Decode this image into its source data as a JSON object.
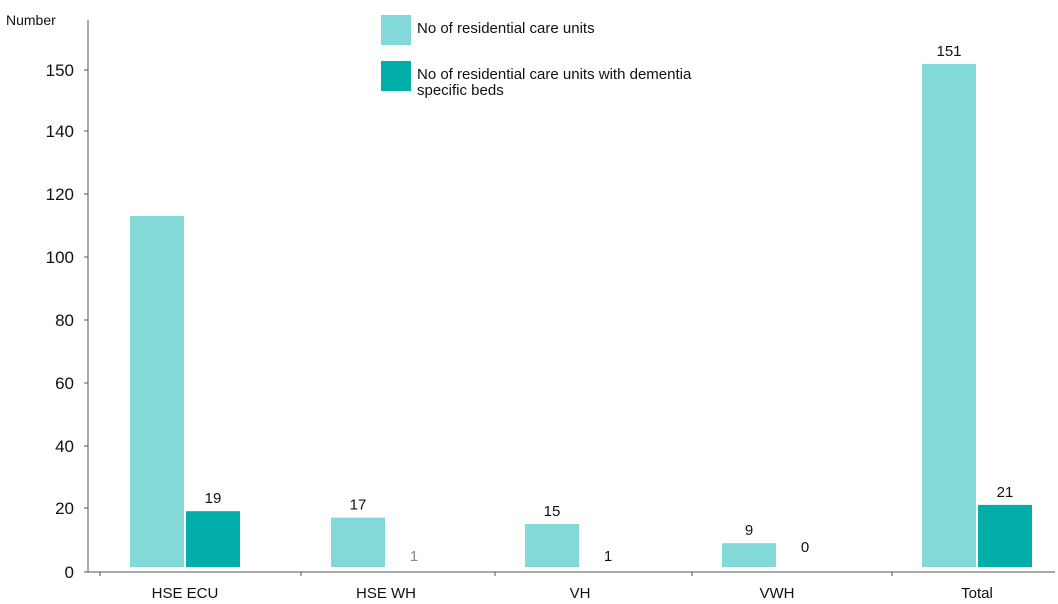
{
  "chart_data": {
    "type": "bar",
    "ylabel": "Number",
    "xlabel": "",
    "ylim": [
      0,
      160
    ],
    "yticks": [
      0,
      20,
      40,
      60,
      80,
      100,
      120,
      140,
      150
    ],
    "categories": [
      "HSE ECU",
      "HSE WH",
      "VH",
      "VWH",
      "Total"
    ],
    "series": [
      {
        "name": "No of residential care units",
        "values": [
          113,
          17,
          15,
          9,
          151
        ],
        "color": "#82d9d7",
        "labels": [
          "",
          "17",
          "15",
          "9",
          "151"
        ]
      },
      {
        "name": "No of residential care units with dementia specific beds",
        "values": [
          19,
          1,
          1,
          0,
          21
        ],
        "color": "#00ada9",
        "labels": [
          "19",
          "1",
          "1",
          "0",
          "21"
        ]
      }
    ],
    "legend_placement": "top-center",
    "grid": false
  }
}
